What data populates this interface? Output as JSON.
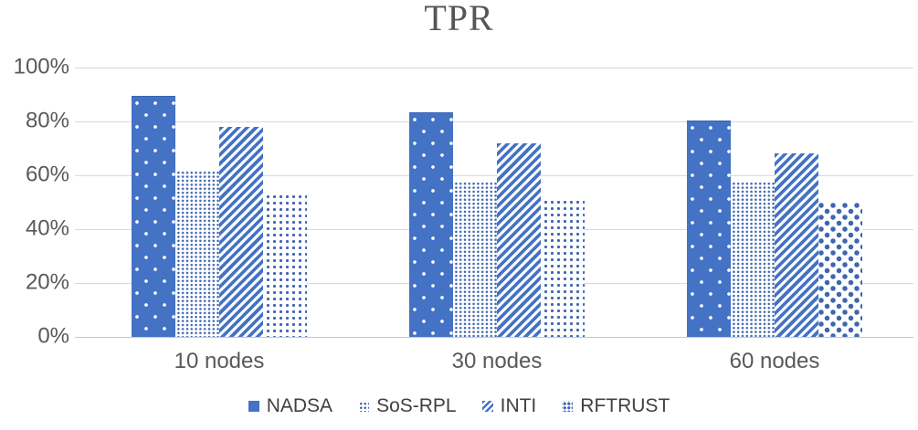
{
  "title": "TPR",
  "colors": {
    "series_blue": "#4472C4",
    "title_text": "#555555",
    "axis_text": "#595959",
    "gridline": "#D9D9D9"
  },
  "chart_data": {
    "type": "bar",
    "title": "TPR",
    "categories": [
      "10 nodes",
      "30 nodes",
      "60 nodes"
    ],
    "series": [
      {
        "name": "NADSA",
        "pattern": "solid-with-white-dots",
        "color": "#4472C4",
        "values": [
          89,
          83,
          80
        ]
      },
      {
        "name": "SoS-RPL",
        "pattern": "fine-dots",
        "color": "#4472C4",
        "values": [
          62,
          58,
          58
        ]
      },
      {
        "name": "INTI",
        "pattern": "diagonal-stripes",
        "color": "#4472C4",
        "values": [
          78,
          72,
          68
        ]
      },
      {
        "name": "RFTRUST",
        "pattern": "square-dots",
        "color": "#4472C4",
        "values": [
          54,
          52,
          50
        ]
      }
    ],
    "value_unit": "%",
    "ylim": [
      0,
      100
    ],
    "yticks": [
      {
        "label": "0%",
        "value": 0
      },
      {
        "label": "20%",
        "value": 20
      },
      {
        "label": "40%",
        "value": 40
      },
      {
        "label": "60%",
        "value": 60
      },
      {
        "label": "80%",
        "value": 80
      },
      {
        "label": "100%",
        "value": 100
      }
    ],
    "grid": true,
    "legend_position": "bottom",
    "xlabel": "",
    "ylabel": ""
  }
}
